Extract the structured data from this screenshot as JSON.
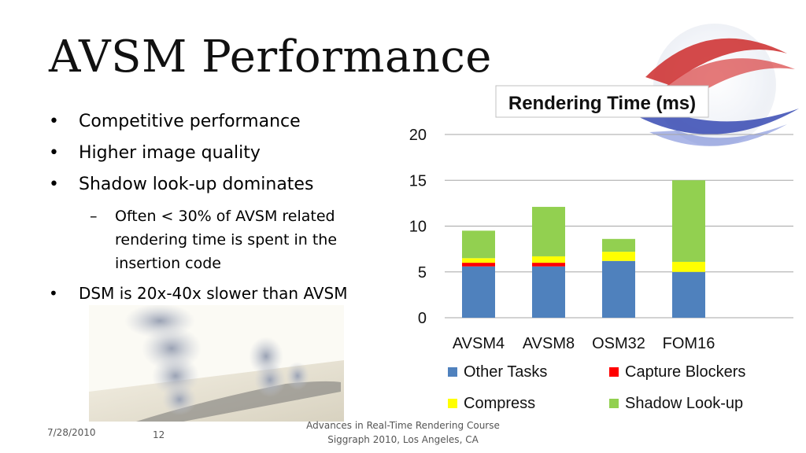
{
  "slide": {
    "title": "AVSM Performance",
    "bullets": [
      "Competitive performance",
      "Higher image quality",
      "Shadow look-up dominates"
    ],
    "sub_bullet": "Often < 30% of AVSM related rendering time is spent in the insertion code",
    "last_bullet": "DSM is 20x-40x slower than AVSM",
    "bullet_glyph": "•",
    "dash_glyph": "–"
  },
  "footer": {
    "date": "7/28/2010",
    "page": "12",
    "line1": "Advances in Real-Time Rendering Course",
    "line2": "Siggraph 2010, Los Angeles, CA"
  },
  "chart_data": {
    "type": "bar",
    "stacked": true,
    "title": "Rendering Time (ms)",
    "categories": [
      "AVSM4",
      "AVSM8",
      "OSM32",
      "FOM16"
    ],
    "series": [
      {
        "name": "Other Tasks",
        "color": "#4f81bd",
        "values": [
          5.6,
          5.6,
          6.2,
          5.0
        ]
      },
      {
        "name": "Capture Blockers",
        "color": "#ff0000",
        "values": [
          0.4,
          0.4,
          0,
          0
        ]
      },
      {
        "name": "Compress",
        "color": "#ffff00",
        "values": [
          0.5,
          0.7,
          1.0,
          1.1
        ]
      },
      {
        "name": "Shadow Look-up",
        "color": "#92d050",
        "values": [
          3.0,
          5.4,
          1.4,
          8.9
        ]
      }
    ],
    "yticks": [
      "0",
      "5",
      "10",
      "15",
      "20"
    ],
    "ylim": [
      0,
      20
    ],
    "grid": true,
    "legend_position": "bottom"
  }
}
